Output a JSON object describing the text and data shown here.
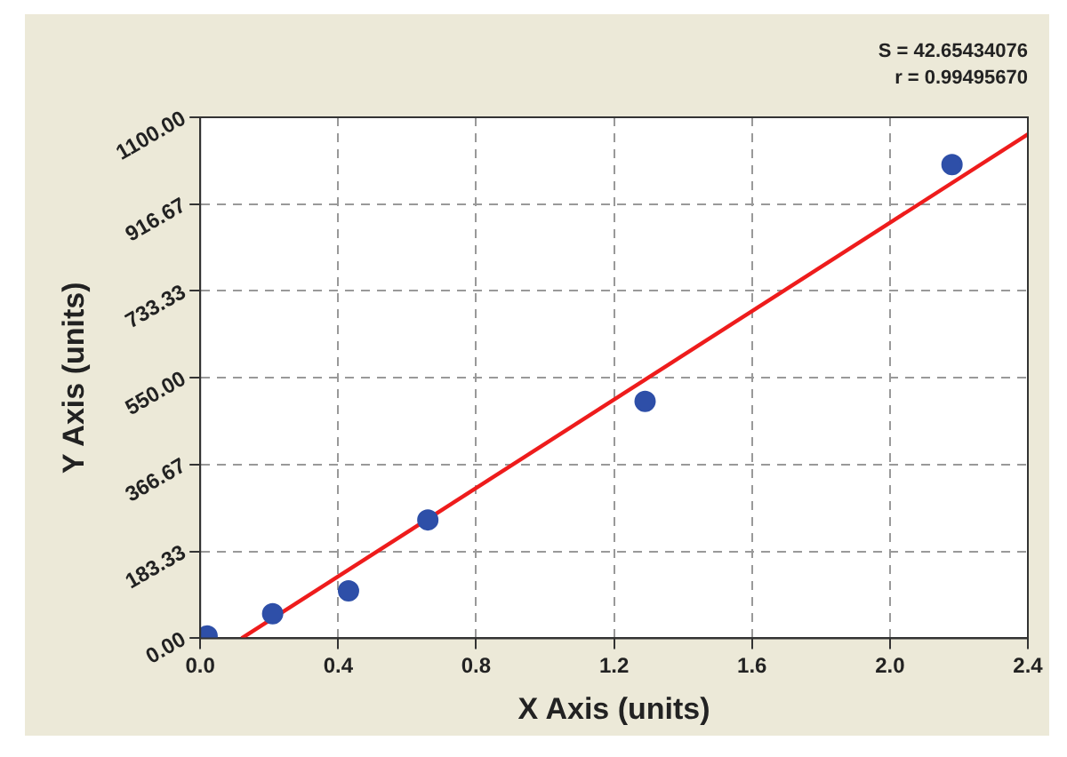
{
  "chart_data": {
    "type": "scatter",
    "xlabel": "X Axis (units)",
    "ylabel": "Y Axis (units)",
    "annotations": [
      "S = 42.65434076",
      "r = 0.99495670"
    ],
    "series": [
      {
        "type": "scatter",
        "marker": "circle",
        "color": "#2e4fa8",
        "x": [
          0.02,
          0.21,
          0.43,
          0.66,
          1.29,
          2.18
        ],
        "values": [
          5,
          52,
          100,
          250,
          500,
          1000
        ]
      },
      {
        "type": "line",
        "marker": "none",
        "color": "#ee1c1c",
        "x": [
          0.12,
          2.4
        ],
        "values": [
          0,
          1064
        ]
      }
    ],
    "xlim": [
      0,
      2.4
    ],
    "xticks": [
      {
        "value": 0,
        "label": "0.0"
      },
      0.4,
      0.8,
      1.2,
      1.6,
      {
        "value": 2,
        "label": "2.0"
      },
      2.4
    ],
    "ylim": [
      0,
      1100
    ],
    "yticks": [
      {
        "value": 0,
        "label": "0.00"
      },
      183.33,
      366.67,
      {
        "value": 550,
        "label": "550.00"
      },
      733.33,
      916.67,
      {
        "value": 1100,
        "label": "1100.00"
      }
    ],
    "grid": true,
    "legend": false,
    "line_style": "solid"
  }
}
